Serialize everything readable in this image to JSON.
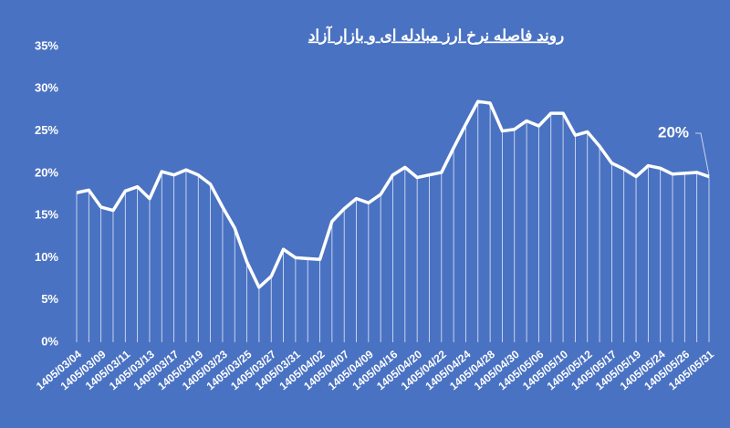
{
  "chart_data": {
    "type": "line",
    "title": "روند فاصله نرخ ارز مبادله ای و بازار آزاد",
    "annotation": "20%",
    "color": "#ffffff",
    "drop_lines": true,
    "categories": [
      "1405/03/04",
      null,
      "1405/03/09",
      null,
      "1405/03/11",
      null,
      "1405/03/13",
      null,
      "1405/03/17",
      null,
      "1405/03/19",
      null,
      "1405/03/23",
      null,
      "1405/03/25",
      null,
      "1405/03/27",
      null,
      "1405/03/31",
      null,
      "1405/04/02",
      null,
      "1405/04/07",
      null,
      "1405/04/09",
      null,
      "1405/04/16",
      null,
      "1405/04/20",
      null,
      "1405/04/22",
      null,
      "1405/04/24",
      null,
      "1405/04/28",
      null,
      "1405/04/30",
      null,
      "1405/05/06",
      null,
      "1405/05/10",
      null,
      "1405/05/12",
      null,
      "1405/05/17",
      null,
      "1405/05/19",
      null,
      "1405/05/24",
      null,
      "1405/05/26",
      null,
      "1405/05/31"
    ],
    "values": [
      17.7,
      18.0,
      16.0,
      15.6,
      17.9,
      18.4,
      17.0,
      20.2,
      19.8,
      20.4,
      19.8,
      18.7,
      16.0,
      13.5,
      9.5,
      6.5,
      7.8,
      11.0,
      10.0,
      9.9,
      9.8,
      14.3,
      15.8,
      17.0,
      16.5,
      17.5,
      19.8,
      20.7,
      19.5,
      19.8,
      20.1,
      23.0,
      25.8,
      28.5,
      28.3,
      25.0,
      25.2,
      26.2,
      25.6,
      27.1,
      27.1,
      24.5,
      24.9,
      23.2,
      21.2,
      20.5,
      19.6,
      20.9,
      20.6,
      19.9,
      20.0,
      20.1,
      19.6
    ],
    "ylim": [
      0,
      35
    ],
    "yticks": [
      {
        "value": 0,
        "label": "0%"
      },
      {
        "value": 5,
        "label": "5%"
      },
      {
        "value": 10,
        "label": "10%"
      },
      {
        "value": 15,
        "label": "15%"
      },
      {
        "value": 20,
        "label": "20%"
      },
      {
        "value": 25,
        "label": "25%"
      },
      {
        "value": 30,
        "label": "30%"
      },
      {
        "value": 35,
        "label": "35%"
      }
    ]
  }
}
